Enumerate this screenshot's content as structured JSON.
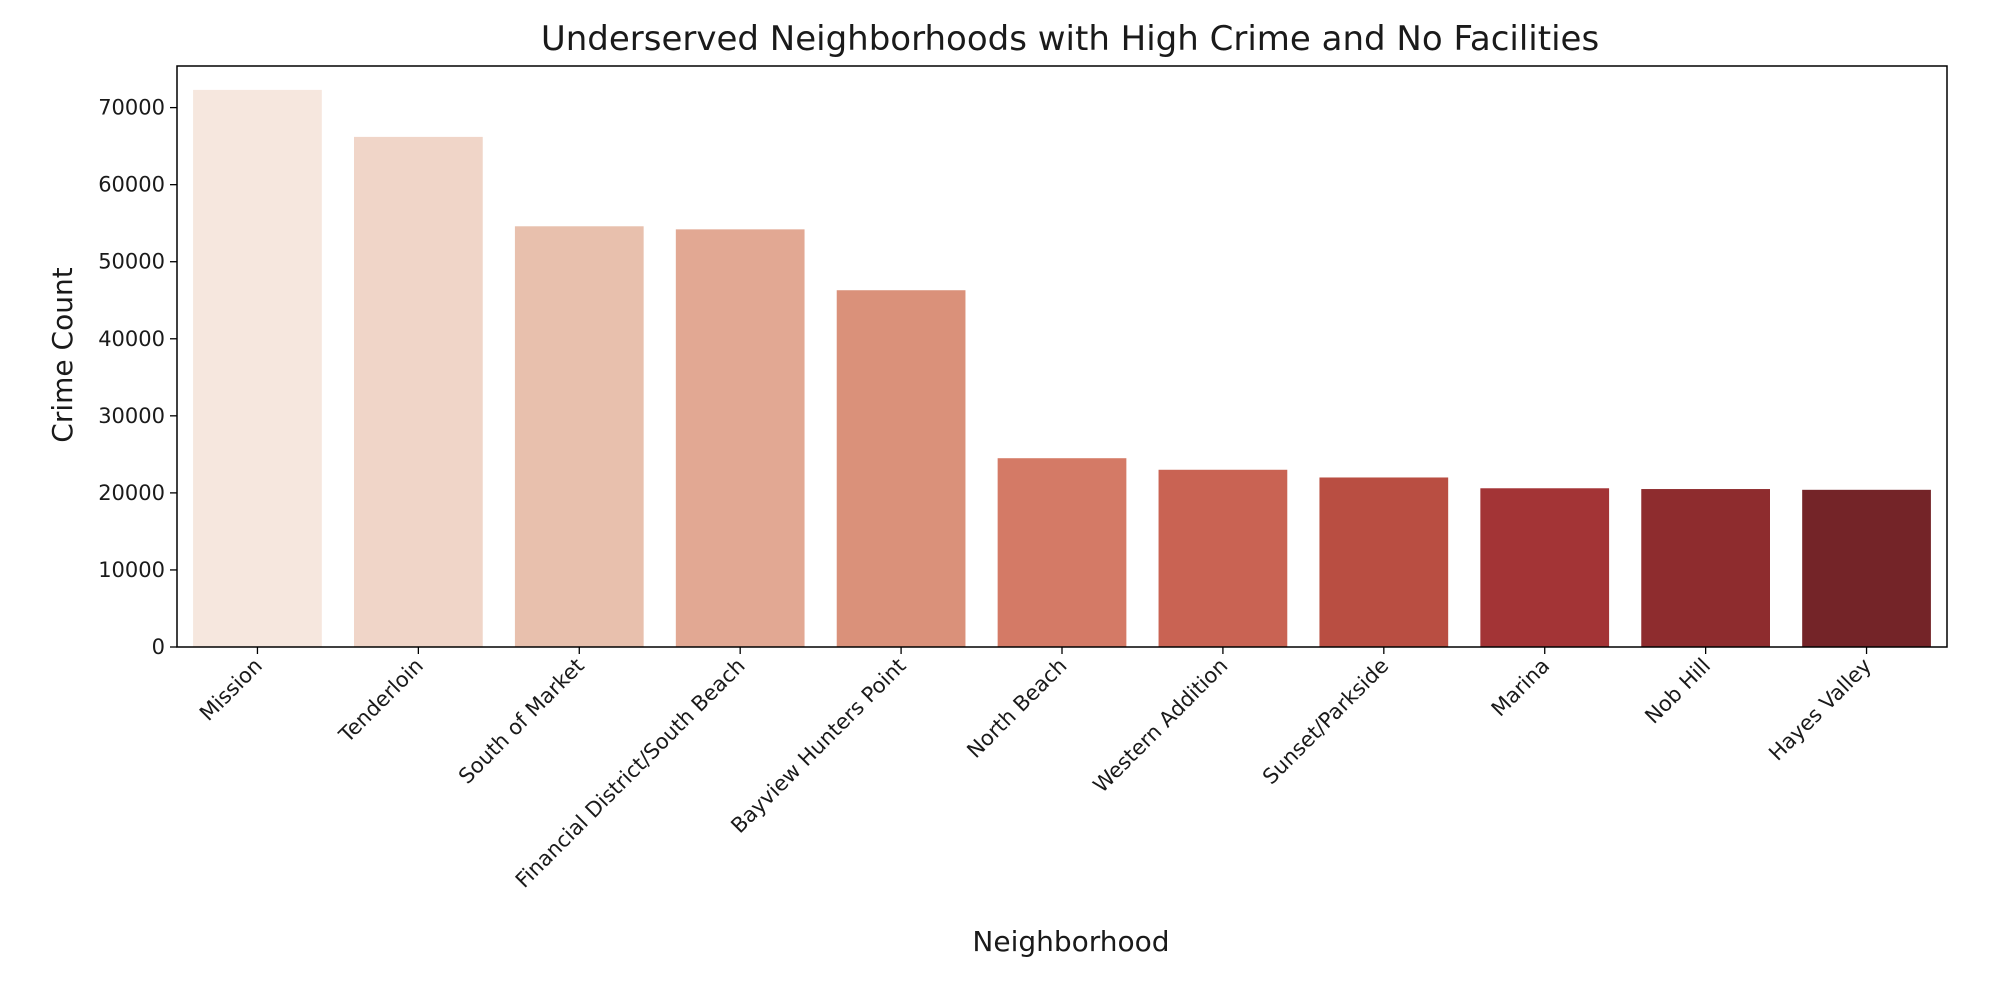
{
  "chart_data": {
    "type": "bar",
    "title": "Underserved Neighborhoods with High Crime and No Facilities",
    "xlabel": "Neighborhood",
    "ylabel": "Crime Count",
    "categories": [
      "Mission",
      "Tenderloin",
      "South of Market",
      "Financial District/South Beach",
      "Bayview Hunters Point",
      "North Beach",
      "Western Addition",
      "Sunset/Parkside",
      "Marina",
      "Nob Hill",
      "Hayes Valley"
    ],
    "values": [
      72300,
      66200,
      54600,
      54200,
      46300,
      24500,
      23000,
      22000,
      20600,
      20500,
      20400
    ],
    "colors": [
      "#f6e7de",
      "#f0d5c8",
      "#e8c0ad",
      "#e2a893",
      "#da917a",
      "#d47a66",
      "#c96353",
      "#b94e42",
      "#a33436",
      "#8e2c2e",
      "#742428"
    ],
    "ylim": [
      0,
      75400
    ],
    "yticks": [
      0,
      10000,
      20000,
      30000,
      40000,
      50000,
      60000,
      70000
    ],
    "grid": false,
    "legend": "none"
  }
}
